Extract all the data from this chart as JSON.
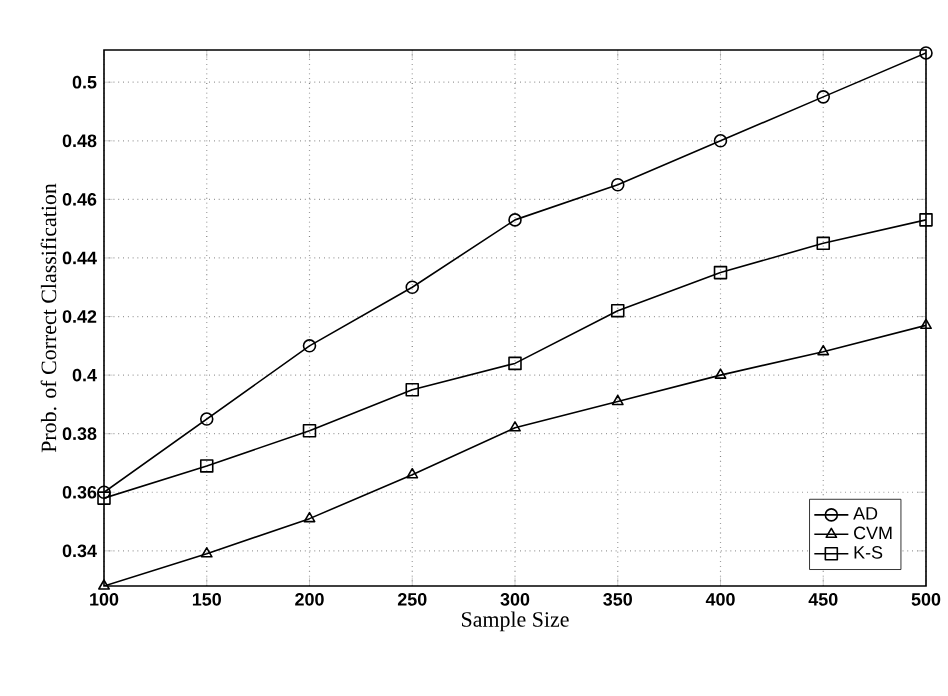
{
  "chart_data": {
    "type": "line",
    "xlabel": "Sample Size",
    "ylabel": "Prob. of Correct Classification",
    "x": [
      100,
      150,
      200,
      250,
      300,
      350,
      400,
      450,
      500
    ],
    "series": [
      {
        "name": "AD",
        "color": "#000000",
        "marker": "circle",
        "values": [
          0.36,
          0.385,
          0.41,
          0.43,
          0.453,
          0.465,
          0.48,
          0.495,
          0.51
        ]
      },
      {
        "name": "CVM",
        "color": "#000000",
        "marker": "triangle",
        "values": [
          0.328,
          0.339,
          0.351,
          0.366,
          0.382,
          0.391,
          0.4,
          0.408,
          0.417
        ]
      },
      {
        "name": "K-S",
        "color": "#000000",
        "marker": "square",
        "values": [
          0.358,
          0.369,
          0.381,
          0.395,
          0.404,
          0.422,
          0.435,
          0.445,
          0.453
        ]
      }
    ],
    "xlim": [
      100,
      500
    ],
    "ylim": [
      0.328,
      0.511
    ],
    "xticks": [
      100,
      150,
      200,
      250,
      300,
      350,
      400,
      450,
      500
    ],
    "yticks": [
      0.34,
      0.36,
      0.38,
      0.4,
      0.42,
      0.44,
      0.46,
      0.48,
      0.5
    ],
    "grid": true,
    "legend": "bottom right",
    "line_style": "solid"
  }
}
